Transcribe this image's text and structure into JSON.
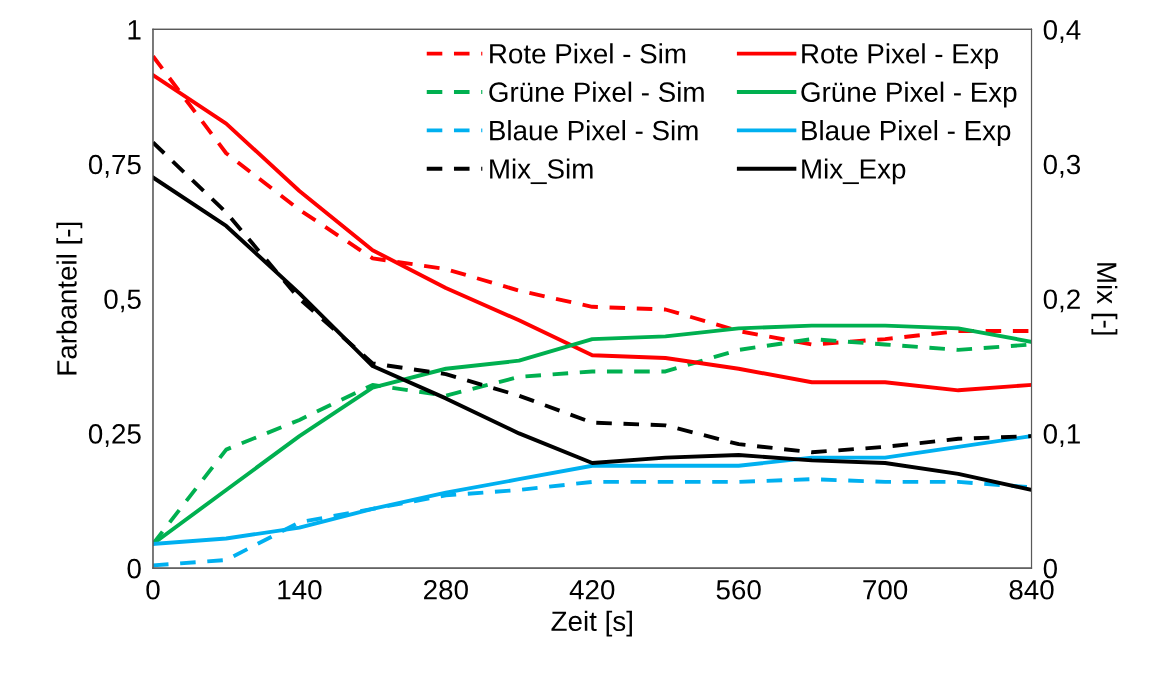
{
  "chart_data": {
    "type": "line",
    "xlabel": "Zeit [s]",
    "ylabel": "Farbanteil [-]",
    "y2label": "Mix [-]",
    "x": [
      0,
      70,
      140,
      210,
      280,
      350,
      420,
      490,
      560,
      630,
      700,
      770,
      840
    ],
    "xlim": [
      0,
      840
    ],
    "xticks": [
      0,
      140,
      280,
      420,
      560,
      700,
      840
    ],
    "ylim": [
      0,
      1
    ],
    "yticks": [
      0,
      {
        "value": 0.25,
        "label": "0,25"
      },
      {
        "value": 0.5,
        "label": "0,5"
      },
      {
        "value": 0.75,
        "label": "0,75"
      },
      1
    ],
    "y2lim": [
      0,
      0.4
    ],
    "y2ticks": [
      0,
      {
        "value": 0.1,
        "label": "0,1"
      },
      {
        "value": 0.2,
        "label": "0,2"
      },
      {
        "value": 0.3,
        "label": "0,3"
      },
      {
        "value": 0.4,
        "label": "0,4"
      }
    ],
    "grid": false,
    "legend": "top right",
    "marker": "none",
    "series": [
      {
        "name": "Rote Pixel - Sim",
        "color": "#ff0000",
        "line_style": "dashed",
        "values": [
          0.95,
          0.77,
          0.665,
          0.575,
          0.555,
          0.515,
          0.485,
          0.48,
          0.44,
          0.415,
          0.425,
          0.44,
          0.44
        ]
      },
      {
        "name": "Grüne Pixel - Sim",
        "color": "#00b050",
        "line_style": "dashed",
        "values": [
          0.045,
          0.22,
          0.275,
          0.34,
          0.32,
          0.355,
          0.365,
          0.365,
          0.405,
          0.425,
          0.415,
          0.405,
          0.415
        ]
      },
      {
        "name": "Blaue Pixel - Sim",
        "color": "#00b0f0",
        "line_style": "dashed",
        "values": [
          0.005,
          0.015,
          0.085,
          0.11,
          0.135,
          0.145,
          0.16,
          0.16,
          0.16,
          0.165,
          0.16,
          0.16,
          0.15
        ]
      },
      {
        "name": "Mix_Sim",
        "color": "#000000",
        "line_style": "dashed",
        "axis": "y2",
        "values": [
          0.316,
          0.264,
          0.2,
          0.152,
          0.144,
          0.128,
          0.108,
          0.106,
          0.092,
          0.086,
          0.09,
          0.096,
          0.098
        ]
      },
      {
        "name": "Rote Pixel - Exp",
        "color": "#ff0000",
        "line_style": "solid",
        "values": [
          0.915,
          0.825,
          0.7,
          0.59,
          0.52,
          0.46,
          0.395,
          0.39,
          0.37,
          0.345,
          0.345,
          0.33,
          0.34
        ]
      },
      {
        "name": "Grüne Pixel - Exp",
        "color": "#00b050",
        "line_style": "solid",
        "values": [
          0.045,
          0.145,
          0.245,
          0.335,
          0.37,
          0.385,
          0.425,
          0.43,
          0.445,
          0.45,
          0.45,
          0.445,
          0.42
        ]
      },
      {
        "name": "Blaue Pixel - Exp",
        "color": "#00b0f0",
        "line_style": "solid",
        "values": [
          0.045,
          0.055,
          0.075,
          0.11,
          0.14,
          0.165,
          0.19,
          0.19,
          0.19,
          0.205,
          0.205,
          0.225,
          0.245
        ]
      },
      {
        "name": "Mix_Exp",
        "color": "#000000",
        "line_style": "solid",
        "axis": "y2",
        "values": [
          0.29,
          0.254,
          0.204,
          0.15,
          0.126,
          0.1,
          0.078,
          0.082,
          0.084,
          0.08,
          0.078,
          0.07,
          0.058
        ]
      }
    ]
  }
}
